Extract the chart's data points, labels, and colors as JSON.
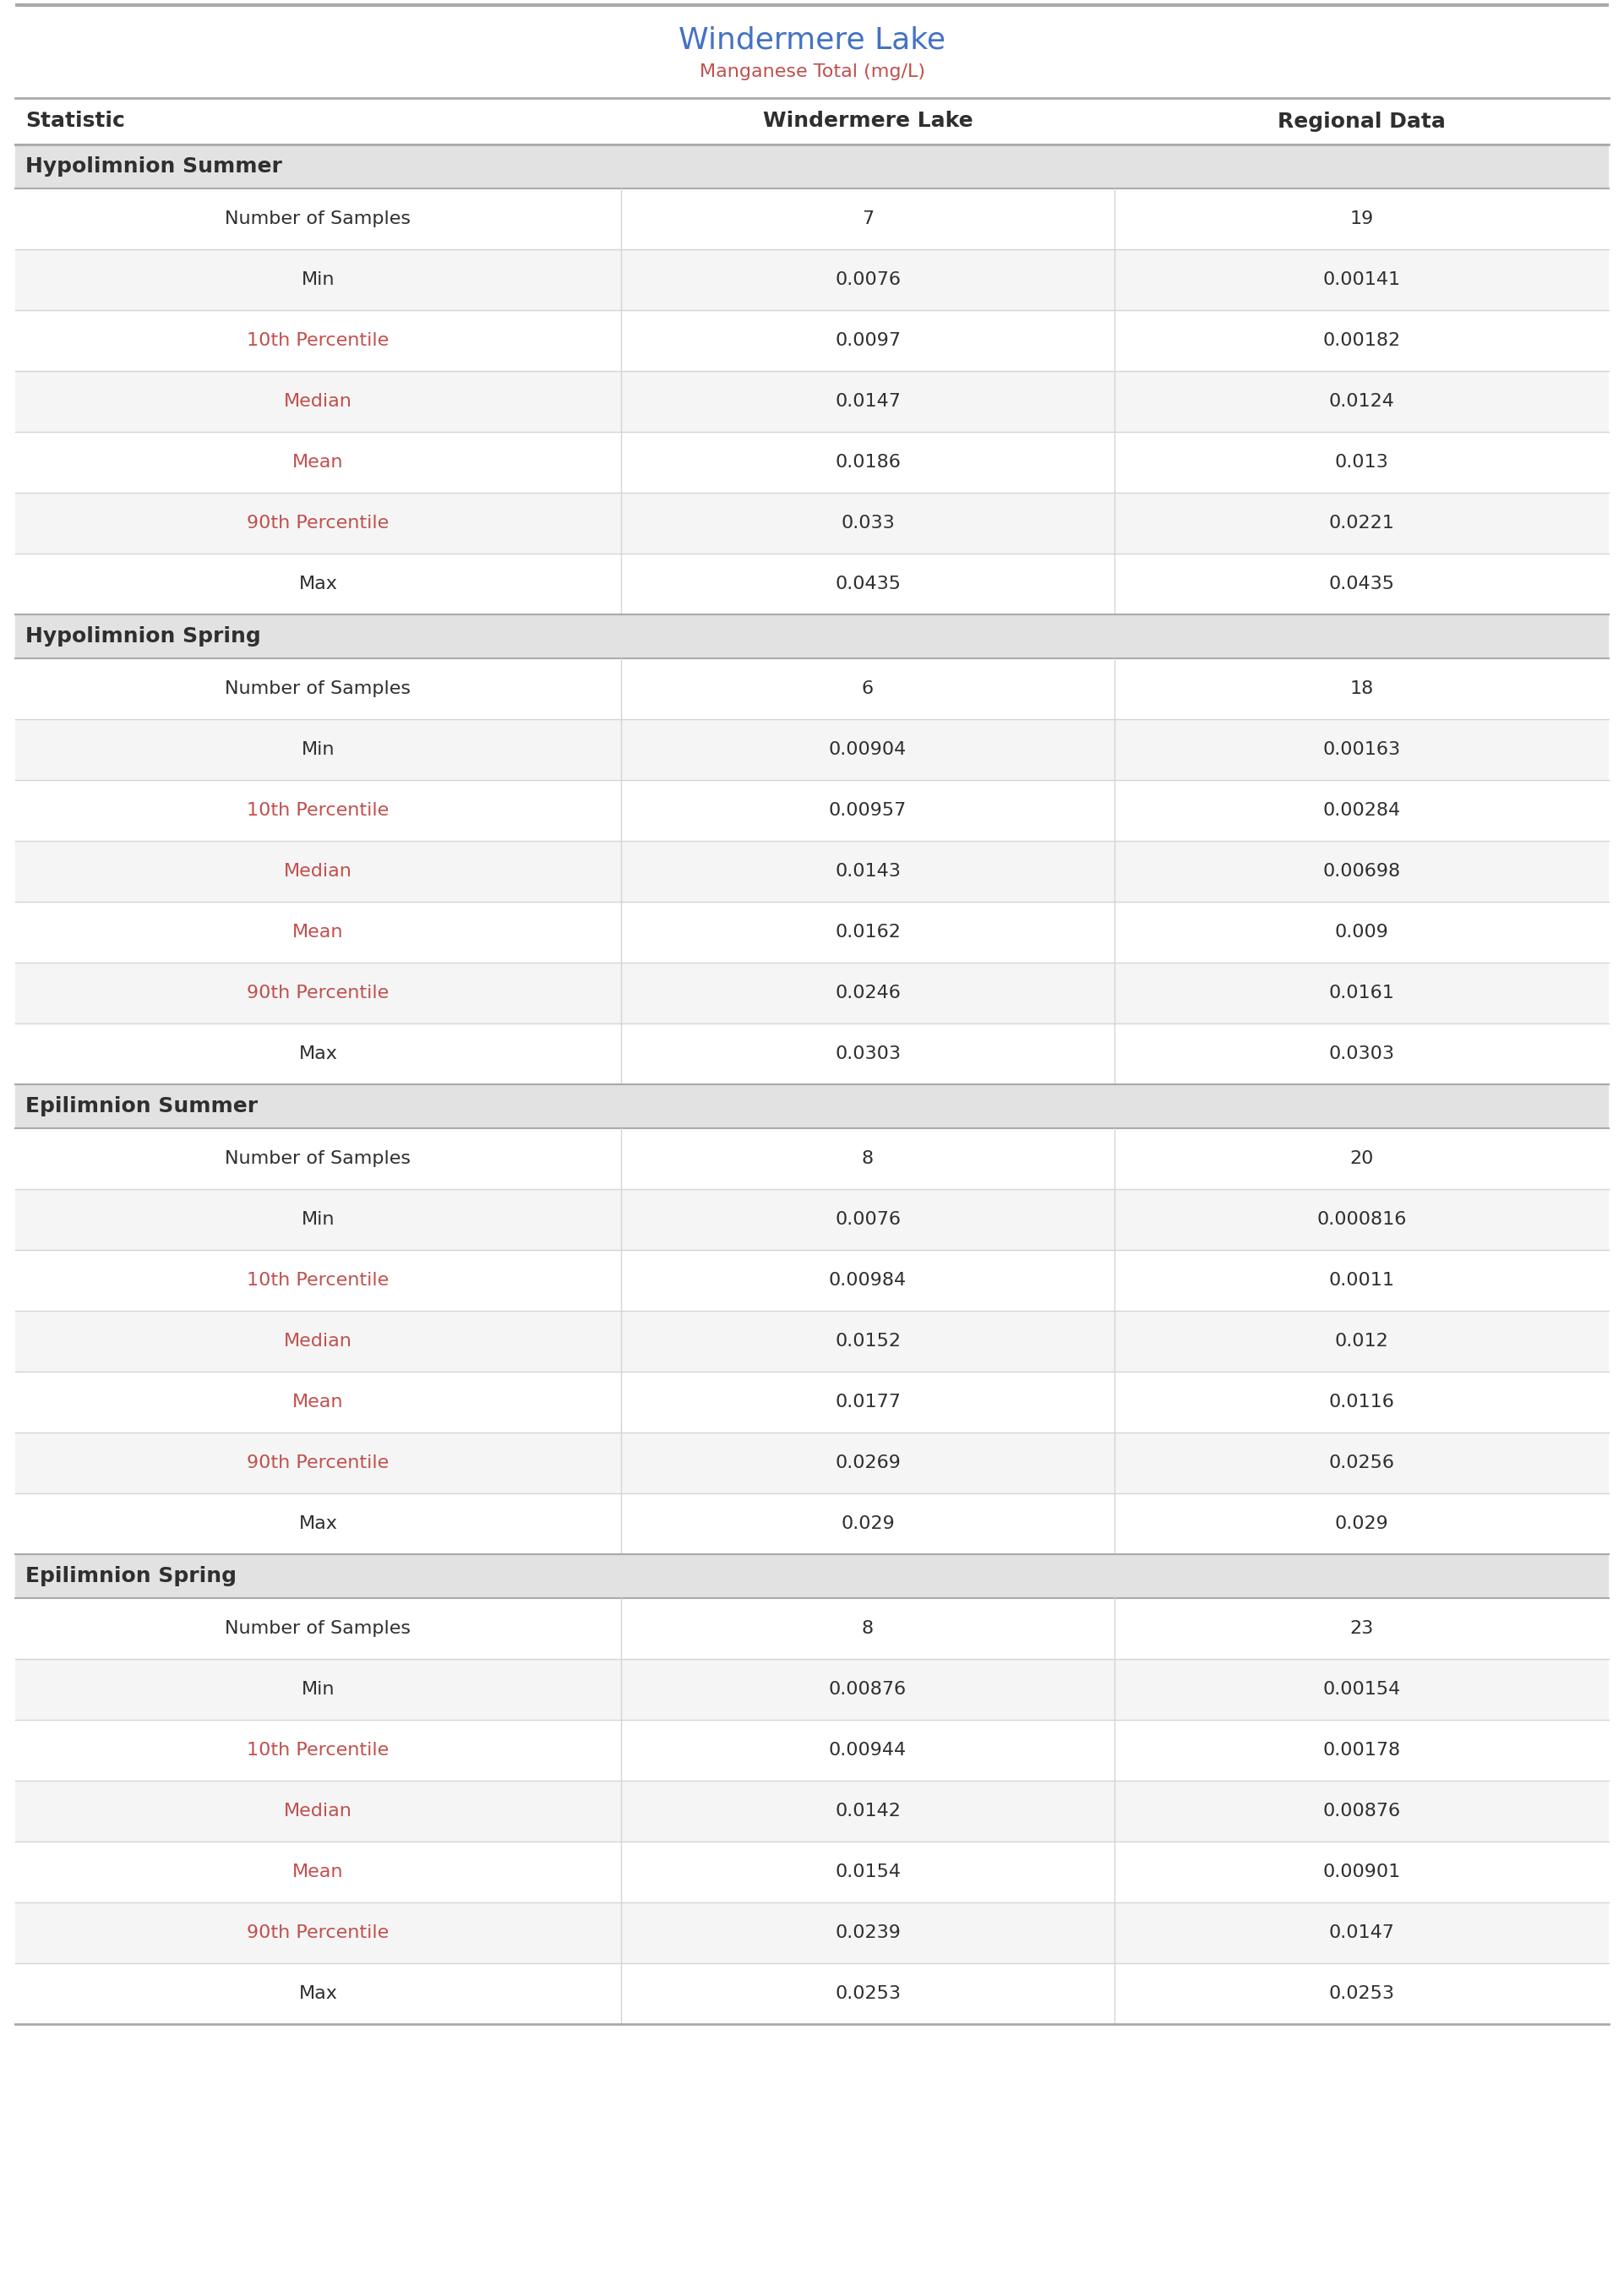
{
  "title": "Windermere Lake",
  "subtitle": "Manganese Total (mg/L)",
  "col_headers": [
    "Statistic",
    "Windermere Lake",
    "Regional Data"
  ],
  "sections": [
    {
      "name": "Hypolimnion Summer",
      "rows": [
        [
          "Number of Samples",
          "7",
          "19"
        ],
        [
          "Min",
          "0.0076",
          "0.00141"
        ],
        [
          "10th Percentile",
          "0.0097",
          "0.00182"
        ],
        [
          "Median",
          "0.0147",
          "0.0124"
        ],
        [
          "Mean",
          "0.0186",
          "0.013"
        ],
        [
          "90th Percentile",
          "0.033",
          "0.0221"
        ],
        [
          "Max",
          "0.0435",
          "0.0435"
        ]
      ]
    },
    {
      "name": "Hypolimnion Spring",
      "rows": [
        [
          "Number of Samples",
          "6",
          "18"
        ],
        [
          "Min",
          "0.00904",
          "0.00163"
        ],
        [
          "10th Percentile",
          "0.00957",
          "0.00284"
        ],
        [
          "Median",
          "0.0143",
          "0.00698"
        ],
        [
          "Mean",
          "0.0162",
          "0.009"
        ],
        [
          "90th Percentile",
          "0.0246",
          "0.0161"
        ],
        [
          "Max",
          "0.0303",
          "0.0303"
        ]
      ]
    },
    {
      "name": "Epilimnion Summer",
      "rows": [
        [
          "Number of Samples",
          "8",
          "20"
        ],
        [
          "Min",
          "0.0076",
          "0.000816"
        ],
        [
          "10th Percentile",
          "0.00984",
          "0.0011"
        ],
        [
          "Median",
          "0.0152",
          "0.012"
        ],
        [
          "Mean",
          "0.0177",
          "0.0116"
        ],
        [
          "90th Percentile",
          "0.0269",
          "0.0256"
        ],
        [
          "Max",
          "0.029",
          "0.029"
        ]
      ]
    },
    {
      "name": "Epilimnion Spring",
      "rows": [
        [
          "Number of Samples",
          "8",
          "23"
        ],
        [
          "Min",
          "0.00876",
          "0.00154"
        ],
        [
          "10th Percentile",
          "0.00944",
          "0.00178"
        ],
        [
          "Median",
          "0.0142",
          "0.00876"
        ],
        [
          "Mean",
          "0.0154",
          "0.00901"
        ],
        [
          "90th Percentile",
          "0.0239",
          "0.0147"
        ],
        [
          "Max",
          "0.0253",
          "0.0253"
        ]
      ]
    }
  ],
  "title_color": "#4472C4",
  "subtitle_color": "#C0504D",
  "header_text_color": "#2F2F2F",
  "section_header_bg": "#E2E2E2",
  "section_header_text_color": "#2F2F2F",
  "row_bg_white": "#FFFFFF",
  "row_bg_light": "#F5F5F5",
  "data_text_color": "#2F2F2F",
  "stat_plain_color": "#2F2F2F",
  "stat_highlight_color": "#C0504D",
  "divider_color_strong": "#AAAAAA",
  "divider_color_light": "#D5D5D5",
  "fig_bg": "#FFFFFF",
  "title_fontsize": 26,
  "subtitle_fontsize": 16,
  "header_fontsize": 18,
  "section_fontsize": 18,
  "data_fontsize": 16,
  "highlight_stats": [
    "10th Percentile",
    "90th Percentile",
    "Median",
    "Mean"
  ]
}
